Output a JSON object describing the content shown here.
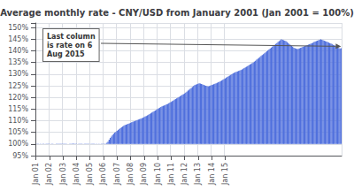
{
  "chart_data": {
    "type": "bar",
    "title": "Average monthly rate - CNY/USD from January 2001 (Jan 2001 = 100%)",
    "categories": [
      "Jan 01",
      null,
      null,
      null,
      null,
      null,
      null,
      null,
      null,
      null,
      null,
      null,
      "Jan 02",
      null,
      null,
      null,
      null,
      null,
      null,
      null,
      null,
      null,
      null,
      null,
      "Jan 03",
      null,
      null,
      null,
      null,
      null,
      null,
      null,
      null,
      null,
      null,
      null,
      "Jan 04",
      null,
      null,
      null,
      null,
      null,
      null,
      null,
      null,
      null,
      null,
      null,
      "Jan 05",
      null,
      null,
      null,
      null,
      null,
      null,
      null,
      null,
      null,
      null,
      null,
      "Jan 06",
      null,
      null,
      null,
      null,
      null,
      null,
      null,
      null,
      null,
      null,
      null,
      "Jan 07",
      null,
      null,
      null,
      null,
      null,
      null,
      null,
      null,
      null,
      null,
      null,
      "Jan 08",
      null,
      null,
      null,
      null,
      null,
      null,
      null,
      null,
      null,
      null,
      null,
      "Jan 09",
      null,
      null,
      null,
      null,
      null,
      null,
      null,
      null,
      null,
      null,
      null,
      "Jan 10",
      null,
      null,
      null,
      null,
      null,
      null,
      null,
      null,
      null,
      null,
      null,
      "Jan 11",
      null,
      null,
      null,
      null,
      null,
      null,
      null,
      null,
      null,
      null,
      null,
      "Jan 12",
      null,
      null,
      null,
      null,
      null,
      null,
      null,
      null,
      null,
      null,
      null,
      "Jan 13",
      null,
      null,
      null,
      null,
      null,
      null,
      null,
      null,
      null,
      null,
      null,
      "Jan 14",
      null,
      null,
      null,
      null,
      null,
      null,
      null,
      null,
      null,
      null,
      null,
      "Jan 15",
      null,
      null,
      null,
      null,
      null,
      null,
      null,
      null,
      null,
      null,
      null,
      null,
      null,
      null,
      null,
      null,
      null,
      null,
      null,
      null,
      null,
      null,
      null,
      null,
      null,
      null,
      null,
      null,
      null,
      null,
      null,
      null,
      null,
      null,
      null,
      null,
      null,
      null,
      null,
      null,
      null,
      null,
      null,
      null,
      null,
      null,
      null,
      null,
      null,
      null,
      null,
      null,
      null,
      null,
      null,
      null,
      null,
      null,
      null,
      null,
      null,
      null,
      null,
      null,
      null,
      null,
      null,
      null,
      null,
      null,
      null,
      null,
      null,
      null,
      null,
      null,
      null,
      null,
      null,
      null,
      null,
      null,
      null,
      null,
      null,
      null,
      null,
      null,
      null,
      null,
      null,
      null,
      null,
      null,
      null,
      null,
      null,
      null,
      null,
      null,
      null,
      null,
      null
    ],
    "values": [
      100.0,
      100.1,
      100.1,
      100.0,
      100.1,
      100.0,
      100.1,
      100.1,
      100.0,
      100.1,
      100.1,
      100.1,
      100.1,
      100.0,
      100.1,
      100.1,
      100.0,
      100.0,
      100.1,
      100.1,
      100.1,
      100.1,
      100.1,
      100.1,
      100.1,
      100.1,
      100.1,
      100.1,
      100.0,
      100.0,
      100.1,
      100.1,
      100.1,
      100.2,
      100.1,
      100.1,
      100.1,
      100.0,
      100.1,
      100.1,
      100.1,
      100.1,
      100.0,
      100.1,
      100.1,
      100.1,
      100.1,
      100.1,
      100.0,
      100.1,
      100.1,
      100.1,
      100.1,
      100.0,
      100.1,
      100.0,
      100.1,
      100.0,
      100.1,
      100.1,
      100.1,
      100.1,
      100.1,
      100.5,
      101.0,
      101.8,
      102.6,
      103.2,
      103.8,
      104.4,
      104.9,
      105.2,
      105.6,
      106.0,
      106.4,
      106.8,
      107.2,
      107.5,
      107.8,
      108.1,
      108.3,
      108.5,
      108.7,
      108.9,
      109.1,
      109.3,
      109.5,
      109.7,
      109.9,
      110.1,
      110.3,
      110.5,
      110.7,
      110.9,
      111.1,
      111.3,
      111.5,
      111.8,
      112.0,
      112.3,
      112.6,
      112.9,
      113.2,
      113.5,
      113.8,
      114.1,
      114.4,
      114.7,
      115.0,
      115.3,
      115.6,
      115.9,
      116.2,
      116.4,
      116.6,
      116.8,
      117.0,
      117.2,
      117.5,
      117.8,
      118.1,
      118.4,
      118.7,
      119.0,
      119.3,
      119.6,
      119.9,
      120.2,
      120.5,
      120.8,
      121.1,
      121.4,
      121.7,
      122.1,
      122.5,
      122.9,
      123.3,
      123.7,
      124.1,
      124.5,
      124.9,
      125.3,
      125.5,
      125.7,
      125.9,
      126.1,
      126.0,
      125.8,
      125.6,
      125.4,
      125.2,
      125.0,
      124.8,
      124.7,
      124.9,
      125.1,
      125.3,
      125.5,
      125.7,
      125.9,
      126.1,
      126.3,
      126.5,
      126.7,
      127.0,
      127.3,
      127.6,
      127.9,
      128.2,
      128.5,
      128.8,
      129.1,
      129.4,
      129.7,
      130.0,
      130.3,
      130.6,
      130.8,
      131.0,
      131.2,
      131.4,
      131.6,
      131.8,
      132.0,
      132.3,
      132.6,
      132.9,
      133.2,
      133.5,
      133.8,
      134.1,
      134.4,
      134.7,
      135.0,
      135.4,
      135.8,
      136.2,
      136.6,
      137.0,
      137.4,
      137.8,
      138.2,
      138.6,
      139.0,
      139.4,
      139.8,
      140.2,
      140.6,
      141.0,
      141.4,
      141.8,
      142.2,
      142.6,
      143.0,
      143.4,
      143.8,
      144.2,
      144.6,
      145.0,
      144.8,
      144.6,
      144.4,
      144.2,
      143.8,
      143.4,
      143.0,
      142.6,
      142.2,
      141.8,
      141.4,
      141.2,
      141.0,
      140.8,
      140.9,
      141.1,
      141.3,
      141.5,
      141.7,
      141.9,
      142.1,
      142.3,
      142.5,
      142.7,
      142.9,
      143.1,
      143.3,
      143.5,
      143.8,
      144.0,
      144.2,
      144.4,
      144.6,
      144.8,
      145.0,
      144.8,
      144.6,
      144.4,
      144.2,
      144.0,
      143.8,
      143.6,
      143.4,
      143.2,
      143.0,
      142.6,
      142.4,
      142.2,
      142.0,
      141.6,
      141.3,
      141.0,
      141.2
    ],
    "baseline": 100,
    "ylim": [
      95,
      152
    ],
    "yticks": [
      {
        "value": 95,
        "label": "95%"
      },
      {
        "value": 100,
        "label": "100%"
      },
      {
        "value": 105,
        "label": "105%"
      },
      {
        "value": 110,
        "label": "110%"
      },
      {
        "value": 115,
        "label": "115%"
      },
      {
        "value": 120,
        "label": "120%"
      },
      {
        "value": 125,
        "label": "125%"
      },
      {
        "value": 130,
        "label": "130%"
      },
      {
        "value": 135,
        "label": "135%"
      },
      {
        "value": 140,
        "label": "140%"
      },
      {
        "value": 145,
        "label": "145%"
      },
      {
        "value": 150,
        "label": "150%"
      }
    ],
    "grid": true,
    "annotation": "Last column\nis rate on 6\nAug 2015"
  }
}
